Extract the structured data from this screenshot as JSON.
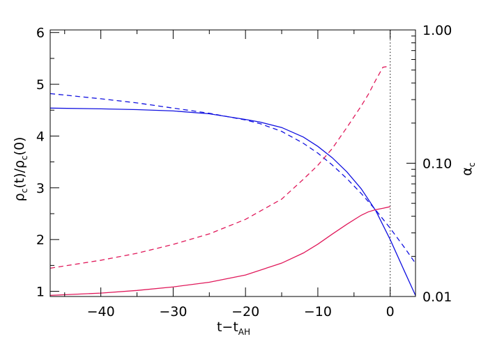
{
  "chart_data": {
    "type": "line",
    "grid": false,
    "legend": "none",
    "x_axis": {
      "range": [
        -47,
        3.5
      ],
      "ticks": [
        -40,
        -30,
        -20,
        -10,
        0
      ],
      "tick_labels": [
        "−40",
        "−30",
        "−20",
        "−10",
        "0"
      ],
      "label_main": "t−t",
      "label_sub": "AH"
    },
    "y_left_axis": {
      "range": [
        0.9,
        6.05
      ],
      "ticks": [
        1,
        2,
        3,
        4,
        5,
        6
      ],
      "tick_labels": [
        "1",
        "2",
        "3",
        "4",
        "5",
        "6"
      ],
      "label_num": "ρ",
      "label_num_sub": "c",
      "label_num_arg": "(t)/",
      "label_den": "ρ",
      "label_den_sub": "c",
      "label_den_arg": "(0)"
    },
    "y_right_axis": {
      "scale": "log",
      "range": [
        0.01,
        1.0
      ],
      "ticks": [
        0.01,
        0.1,
        1.0
      ],
      "tick_labels": [
        "0.01",
        "0.10",
        "1.00"
      ],
      "label_main": "α",
      "label_sub": "c"
    },
    "vline": {
      "x": 0,
      "style": "dotted",
      "color": "#444444"
    },
    "series": [
      {
        "axis": "left",
        "color": "#1010e0",
        "dash": "solid",
        "x": [
          -47,
          -40,
          -35,
          -30,
          -25,
          -20,
          -18,
          -15,
          -12,
          -10,
          -8,
          -6,
          -4,
          -2,
          0,
          2,
          3.5
        ],
        "y": [
          4.54,
          4.525,
          4.51,
          4.485,
          4.43,
          4.32,
          4.27,
          4.165,
          3.98,
          3.8,
          3.58,
          3.31,
          2.98,
          2.56,
          2.0,
          1.38,
          0.92
        ]
      },
      {
        "axis": "left",
        "color": "#1010e0",
        "dash": "dashed",
        "x": [
          -47,
          -40,
          -35,
          -30,
          -25,
          -20,
          -18,
          -15,
          -12,
          -10,
          -8,
          -6,
          -4,
          -2,
          0,
          2,
          3.5
        ],
        "y": [
          4.82,
          4.72,
          4.64,
          4.54,
          4.44,
          4.31,
          4.24,
          4.09,
          3.86,
          3.67,
          3.44,
          3.18,
          2.89,
          2.57,
          2.22,
          1.84,
          1.54
        ]
      },
      {
        "axis": "right",
        "color": "#e0185a",
        "dash": "solid",
        "x": [
          -47,
          -40,
          -35,
          -30,
          -25,
          -20,
          -15,
          -12,
          -10,
          -8,
          -6,
          -4,
          -3,
          -2,
          -1,
          0
        ],
        "y": [
          0.0102,
          0.0106,
          0.0111,
          0.0118,
          0.0128,
          0.0145,
          0.0178,
          0.0212,
          0.0247,
          0.0294,
          0.0348,
          0.0407,
          0.0432,
          0.0448,
          0.0459,
          0.0472
        ]
      },
      {
        "axis": "right",
        "color": "#e0185a",
        "dash": "dashed",
        "x": [
          -47,
          -40,
          -35,
          -30,
          -25,
          -20,
          -15,
          -12,
          -10,
          -8,
          -6,
          -4,
          -3,
          -2,
          -1,
          0
        ],
        "y": [
          0.0163,
          0.0187,
          0.0211,
          0.0246,
          0.0295,
          0.0379,
          0.0538,
          0.0758,
          0.0965,
          0.129,
          0.185,
          0.269,
          0.33,
          0.42,
          0.525,
          0.535
        ]
      }
    ]
  }
}
